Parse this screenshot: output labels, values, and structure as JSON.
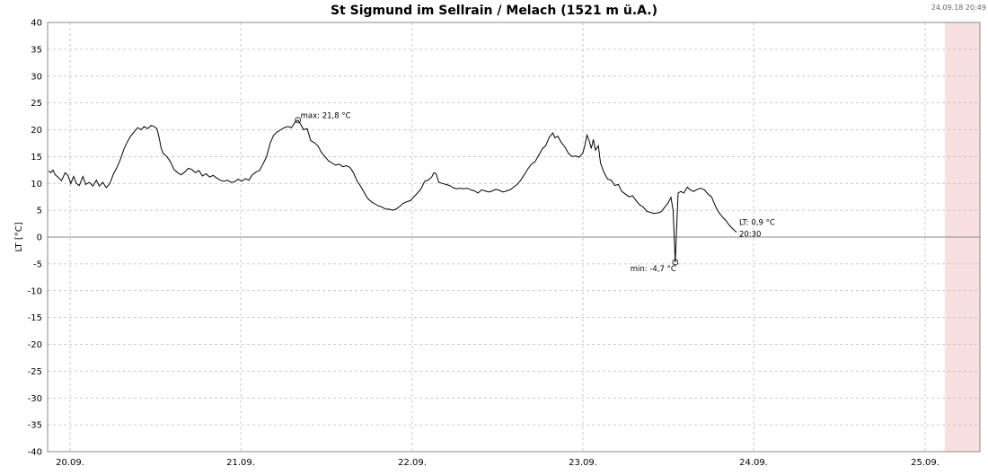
{
  "chart_data": {
    "type": "line",
    "title": "St Sigmund im Sellrain / Melach (1521 m ü.A.)",
    "timestamp": "24.09.18 20:49",
    "ylabel": "LT [°C]",
    "xlabel": "",
    "ylim": [
      -40,
      40
    ],
    "ytick_step": 5,
    "xlim_days": [
      "19.09.2018 21:00",
      "25.09.2018 07:00"
    ],
    "x_tick_labels": [
      "20.09.",
      "21.09.",
      "22.09.",
      "23.09.",
      "24.09.",
      "25.09."
    ],
    "grid": true,
    "forecast_shading_from": "25.09.2018 00:00",
    "shading_color": "#f9e0e0",
    "line_color": "#000000",
    "annotations": {
      "max": {
        "text": "max: 21,8 °C",
        "time": "21.09. 15:00",
        "value": 21.8
      },
      "min": {
        "text": "min: -4,7 °C",
        "time": "24.09. 14:00",
        "value": -4.7
      },
      "current": {
        "text": "LT: 0,9 °C",
        "time_text": "20:30",
        "value": 0.9
      }
    },
    "series": [
      {
        "points": [
          [
            0.0,
            12.3
          ],
          [
            0.3,
            12.0
          ],
          [
            0.6,
            12.5
          ],
          [
            0.9,
            11.6
          ],
          [
            1.3,
            11.2
          ],
          [
            1.8,
            10.5
          ],
          [
            2.3,
            12.0
          ],
          [
            2.7,
            11.5
          ],
          [
            3.1,
            10.0
          ],
          [
            3.5,
            11.3
          ],
          [
            3.9,
            10.0
          ],
          [
            4.3,
            9.6
          ],
          [
            4.8,
            11.3
          ],
          [
            5.2,
            9.8
          ],
          [
            5.7,
            10.2
          ],
          [
            6.2,
            9.5
          ],
          [
            6.7,
            10.6
          ],
          [
            7.1,
            9.5
          ],
          [
            7.6,
            10.2
          ],
          [
            8.1,
            9.2
          ],
          [
            8.6,
            10.0
          ],
          [
            9.1,
            11.8
          ],
          [
            9.6,
            13.0
          ],
          [
            10.1,
            14.6
          ],
          [
            10.6,
            16.5
          ],
          [
            11.0,
            17.6
          ],
          [
            11.5,
            18.8
          ],
          [
            12.0,
            19.6
          ],
          [
            12.5,
            20.4
          ],
          [
            13.0,
            20.0
          ],
          [
            13.4,
            20.6
          ],
          [
            13.9,
            20.2
          ],
          [
            14.4,
            20.8
          ],
          [
            14.8,
            20.6
          ],
          [
            15.2,
            20.2
          ],
          [
            15.5,
            18.6
          ],
          [
            15.8,
            16.5
          ],
          [
            16.1,
            15.6
          ],
          [
            16.6,
            15.0
          ],
          [
            17.1,
            14.0
          ],
          [
            17.6,
            12.6
          ],
          [
            18.1,
            12.0
          ],
          [
            18.6,
            11.6
          ],
          [
            19.1,
            12.1
          ],
          [
            19.6,
            12.8
          ],
          [
            20.1,
            12.6
          ],
          [
            20.6,
            12.0
          ],
          [
            21.1,
            12.4
          ],
          [
            21.6,
            11.4
          ],
          [
            22.1,
            11.8
          ],
          [
            22.6,
            11.2
          ],
          [
            23.1,
            11.5
          ],
          [
            23.6,
            11.0
          ],
          [
            24.1,
            10.6
          ],
          [
            24.6,
            10.4
          ],
          [
            25.1,
            10.6
          ],
          [
            25.6,
            10.2
          ],
          [
            26.1,
            10.3
          ],
          [
            26.6,
            10.8
          ],
          [
            27.1,
            10.4
          ],
          [
            27.6,
            10.9
          ],
          [
            28.1,
            10.6
          ],
          [
            28.6,
            11.6
          ],
          [
            29.1,
            12.1
          ],
          [
            29.6,
            12.4
          ],
          [
            30.1,
            13.6
          ],
          [
            30.6,
            15.0
          ],
          [
            31.1,
            17.5
          ],
          [
            31.6,
            19.0
          ],
          [
            32.1,
            19.6
          ],
          [
            32.6,
            20.0
          ],
          [
            33.1,
            20.4
          ],
          [
            33.6,
            20.6
          ],
          [
            34.1,
            20.4
          ],
          [
            34.6,
            21.4
          ],
          [
            35.0,
            21.8
          ],
          [
            35.4,
            21.0
          ],
          [
            35.8,
            20.0
          ],
          [
            36.3,
            20.2
          ],
          [
            36.8,
            18.0
          ],
          [
            37.3,
            17.6
          ],
          [
            37.8,
            17.0
          ],
          [
            38.3,
            15.8
          ],
          [
            38.8,
            15.0
          ],
          [
            39.3,
            14.2
          ],
          [
            39.8,
            13.8
          ],
          [
            40.3,
            13.4
          ],
          [
            40.8,
            13.6
          ],
          [
            41.3,
            13.1
          ],
          [
            41.8,
            13.3
          ],
          [
            42.3,
            13.0
          ],
          [
            42.8,
            12.0
          ],
          [
            43.3,
            10.5
          ],
          [
            43.8,
            9.5
          ],
          [
            44.3,
            8.3
          ],
          [
            44.8,
            7.2
          ],
          [
            45.3,
            6.6
          ],
          [
            45.8,
            6.2
          ],
          [
            46.3,
            5.8
          ],
          [
            46.8,
            5.6
          ],
          [
            47.3,
            5.2
          ],
          [
            47.8,
            5.2
          ],
          [
            48.3,
            5.0
          ],
          [
            48.8,
            5.2
          ],
          [
            49.3,
            5.7
          ],
          [
            49.8,
            6.3
          ],
          [
            50.3,
            6.6
          ],
          [
            50.8,
            6.8
          ],
          [
            51.3,
            7.5
          ],
          [
            51.8,
            8.2
          ],
          [
            52.3,
            9.0
          ],
          [
            52.8,
            10.4
          ],
          [
            53.3,
            10.6
          ],
          [
            53.8,
            11.2
          ],
          [
            54.1,
            12.0
          ],
          [
            54.4,
            11.8
          ],
          [
            54.8,
            10.2
          ],
          [
            55.3,
            10.0
          ],
          [
            55.8,
            9.8
          ],
          [
            56.3,
            9.6
          ],
          [
            56.8,
            9.2
          ],
          [
            57.3,
            9.0
          ],
          [
            57.8,
            9.1
          ],
          [
            58.3,
            9.0
          ],
          [
            58.8,
            9.1
          ],
          [
            59.3,
            8.8
          ],
          [
            59.8,
            8.6
          ],
          [
            60.3,
            8.2
          ],
          [
            60.8,
            8.8
          ],
          [
            61.3,
            8.6
          ],
          [
            61.8,
            8.4
          ],
          [
            62.3,
            8.6
          ],
          [
            62.8,
            8.9
          ],
          [
            63.3,
            8.7
          ],
          [
            63.8,
            8.4
          ],
          [
            64.3,
            8.6
          ],
          [
            64.8,
            8.8
          ],
          [
            65.3,
            9.3
          ],
          [
            65.8,
            9.8
          ],
          [
            66.3,
            10.6
          ],
          [
            66.8,
            11.6
          ],
          [
            67.3,
            12.7
          ],
          [
            67.8,
            13.6
          ],
          [
            68.3,
            14.0
          ],
          [
            68.8,
            15.2
          ],
          [
            69.3,
            16.4
          ],
          [
            69.8,
            17.0
          ],
          [
            70.3,
            18.6
          ],
          [
            70.8,
            19.4
          ],
          [
            71.1,
            18.5
          ],
          [
            71.5,
            18.8
          ],
          [
            72.0,
            17.6
          ],
          [
            72.5,
            16.8
          ],
          [
            73.0,
            15.6
          ],
          [
            73.5,
            15.0
          ],
          [
            74.0,
            15.1
          ],
          [
            74.5,
            14.9
          ],
          [
            75.0,
            15.6
          ],
          [
            75.3,
            17.0
          ],
          [
            75.6,
            19.0
          ],
          [
            75.9,
            18.0
          ],
          [
            76.2,
            16.5
          ],
          [
            76.5,
            18.2
          ],
          [
            76.8,
            16.2
          ],
          [
            77.2,
            17.0
          ],
          [
            77.5,
            13.8
          ],
          [
            78.0,
            12.0
          ],
          [
            78.5,
            10.8
          ],
          [
            79.0,
            10.6
          ],
          [
            79.5,
            9.6
          ],
          [
            80.0,
            9.8
          ],
          [
            80.5,
            8.5
          ],
          [
            81.0,
            8.0
          ],
          [
            81.5,
            7.5
          ],
          [
            82.0,
            7.7
          ],
          [
            82.5,
            6.8
          ],
          [
            83.0,
            6.0
          ],
          [
            83.5,
            5.6
          ],
          [
            84.0,
            4.8
          ],
          [
            84.5,
            4.6
          ],
          [
            85.0,
            4.4
          ],
          [
            85.5,
            4.5
          ],
          [
            86.0,
            4.7
          ],
          [
            86.5,
            5.5
          ],
          [
            87.0,
            6.4
          ],
          [
            87.4,
            7.4
          ],
          [
            87.7,
            5.0
          ],
          [
            88.0,
            -4.7
          ],
          [
            88.2,
            2.0
          ],
          [
            88.4,
            8.2
          ],
          [
            88.8,
            8.5
          ],
          [
            89.2,
            8.2
          ],
          [
            89.7,
            9.3
          ],
          [
            90.1,
            8.8
          ],
          [
            90.6,
            8.5
          ],
          [
            91.1,
            8.9
          ],
          [
            91.6,
            9.1
          ],
          [
            92.1,
            8.8
          ],
          [
            92.6,
            8.0
          ],
          [
            93.1,
            7.5
          ],
          [
            93.4,
            6.5
          ],
          [
            93.7,
            5.6
          ],
          [
            94.1,
            4.6
          ],
          [
            94.6,
            3.8
          ],
          [
            95.1,
            3.1
          ],
          [
            95.6,
            2.2
          ],
          [
            96.1,
            1.5
          ],
          [
            96.6,
            0.9
          ]
        ]
      }
    ]
  }
}
